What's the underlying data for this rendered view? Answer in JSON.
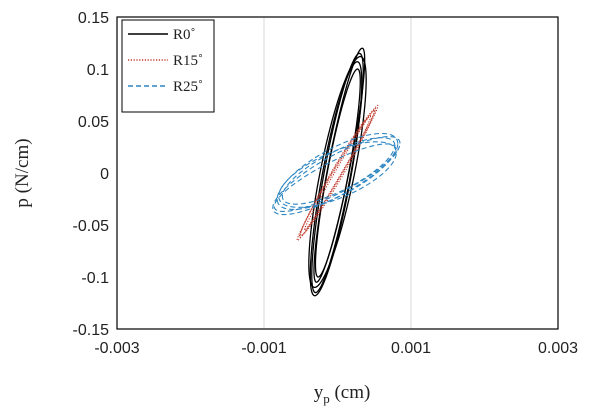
{
  "chart_data": {
    "type": "line",
    "title": "",
    "xlabel": "y",
    "xlabel_sub": "p",
    "xlabel_unit": " (cm)",
    "ylabel": "p (N/cm)",
    "xlim": [
      -0.003,
      0.003
    ],
    "ylim": [
      -0.15,
      0.15
    ],
    "x_ticks": [
      -0.003,
      -0.001,
      0.001,
      0.003
    ],
    "x_tick_labels": [
      "-0.003",
      "-0.001",
      "0.001",
      "0.003"
    ],
    "y_ticks": [
      -0.15,
      -0.1,
      -0.05,
      0,
      0.05,
      0.1,
      0.15
    ],
    "y_tick_labels": [
      "-0.15",
      "-0.1",
      "-0.05",
      "0",
      "0.05",
      "0.1",
      "0.15"
    ],
    "grid": "vertical",
    "legend_position": "top-left",
    "series": [
      {
        "name": "R0˚",
        "color": "#000000",
        "style": "solid",
        "loops": [
          {
            "x_min": -0.00035,
            "x_max": 0.00035,
            "y_min": -0.115,
            "y_max": 0.115,
            "phase": 0.55
          },
          {
            "x_min": -0.00039,
            "x_max": 0.00039,
            "y_min": -0.11,
            "y_max": 0.112,
            "phase": 0.65
          },
          {
            "x_min": -0.00032,
            "x_max": 0.00037,
            "y_min": -0.105,
            "y_max": 0.12,
            "phase": 0.45
          },
          {
            "x_min": -0.00037,
            "x_max": 0.00033,
            "y_min": -0.118,
            "y_max": 0.107,
            "phase": 0.6
          },
          {
            "x_min": -0.0003,
            "x_max": 0.00031,
            "y_min": -0.1,
            "y_max": 0.1,
            "phase": 0.5
          }
        ]
      },
      {
        "name": "R15˚",
        "color": "#c0392b",
        "style": "dotted",
        "loops": [
          {
            "x_min": -0.00055,
            "x_max": 0.00055,
            "y_min": -0.065,
            "y_max": 0.065,
            "phase": 0.12
          },
          {
            "x_min": -0.0005,
            "x_max": 0.0005,
            "y_min": -0.06,
            "y_max": 0.06,
            "phase": 0.18
          },
          {
            "x_min": -0.00045,
            "x_max": 0.00052,
            "y_min": -0.055,
            "y_max": 0.062,
            "phase": 0.1
          },
          {
            "x_min": -0.00052,
            "x_max": 0.00045,
            "y_min": -0.062,
            "y_max": 0.055,
            "phase": 0.15
          }
        ]
      },
      {
        "name": "R25˚",
        "color": "#2e86c1",
        "style": "dashed",
        "loops": [
          {
            "x_min": -0.00088,
            "x_max": 0.00085,
            "y_min": -0.04,
            "y_max": 0.035,
            "phase": 0.6
          },
          {
            "x_min": -0.00082,
            "x_max": 0.00082,
            "y_min": -0.035,
            "y_max": 0.038,
            "phase": 0.75
          },
          {
            "x_min": -0.0008,
            "x_max": 0.0008,
            "y_min": -0.033,
            "y_max": 0.03,
            "phase": 0.85
          },
          {
            "x_min": -0.00075,
            "x_max": 0.00078,
            "y_min": -0.03,
            "y_max": 0.034,
            "phase": 0.7
          },
          {
            "x_min": -0.00086,
            "x_max": 0.00079,
            "y_min": -0.037,
            "y_max": 0.028,
            "phase": 0.55
          }
        ]
      }
    ]
  }
}
